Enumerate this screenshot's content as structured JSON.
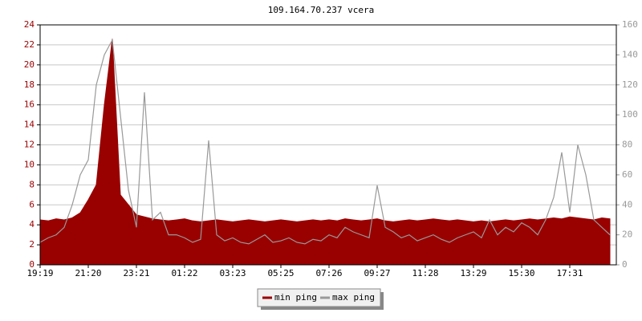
{
  "chart_data": {
    "type": "line",
    "title": "109.164.70.237 vcera",
    "categories": [
      "19:19",
      null,
      null,
      null,
      null,
      null,
      "21:20",
      null,
      null,
      null,
      null,
      null,
      "23:21",
      null,
      null,
      null,
      null,
      null,
      "01:22",
      null,
      null,
      null,
      null,
      null,
      "03:23",
      null,
      null,
      null,
      null,
      null,
      "05:25",
      null,
      null,
      null,
      null,
      null,
      "07:26",
      null,
      null,
      null,
      null,
      null,
      "09:27",
      null,
      null,
      null,
      null,
      null,
      "11:28",
      null,
      null,
      null,
      null,
      null,
      "13:29",
      null,
      null,
      null,
      null,
      null,
      "15:30",
      null,
      null,
      null,
      null,
      null,
      "17:31",
      null,
      null,
      null,
      null,
      null
    ],
    "series": [
      {
        "name": "min ping",
        "color": "#990000",
        "fill": true,
        "values": [
          4.5,
          4.4,
          4.6,
          4.5,
          4.7,
          5.2,
          6.5,
          8.0,
          16.0,
          22.6,
          7.0,
          6.0,
          5.0,
          4.8,
          4.6,
          4.5,
          4.4,
          4.5,
          4.6,
          4.4,
          4.3,
          4.4,
          4.5,
          4.4,
          4.3,
          4.4,
          4.5,
          4.4,
          4.3,
          4.4,
          4.5,
          4.4,
          4.3,
          4.4,
          4.5,
          4.4,
          4.5,
          4.4,
          4.6,
          4.5,
          4.4,
          4.5,
          4.6,
          4.4,
          4.3,
          4.4,
          4.5,
          4.4,
          4.5,
          4.6,
          4.5,
          4.4,
          4.5,
          4.4,
          4.3,
          4.4,
          4.3,
          4.4,
          4.5,
          4.4,
          4.5,
          4.6,
          4.5,
          4.6,
          4.7,
          4.6,
          4.8,
          4.7,
          4.6,
          4.5,
          4.7,
          4.6
        ]
      },
      {
        "name": "max ping",
        "color": "#999999",
        "axis": "y2",
        "values": [
          15,
          18,
          20,
          25,
          40,
          60,
          70,
          120,
          140,
          150,
          100,
          50,
          25,
          115,
          30,
          35,
          20,
          20,
          18,
          15,
          17,
          83,
          20,
          16,
          18,
          15,
          14,
          17,
          20,
          15,
          16,
          18,
          15,
          14,
          17,
          16,
          20,
          18,
          25,
          22,
          20,
          18,
          53,
          25,
          22,
          18,
          20,
          16,
          18,
          20,
          17,
          15,
          18,
          20,
          22,
          18,
          30,
          20,
          25,
          22,
          28,
          25,
          20,
          30,
          45,
          75,
          35,
          80,
          60,
          30,
          25,
          20
        ]
      }
    ],
    "ylim": [
      0,
      24
    ],
    "yticks": [
      0,
      2,
      4,
      6,
      8,
      10,
      12,
      14,
      16,
      18,
      20,
      22,
      24
    ],
    "y2lim": [
      0,
      160
    ],
    "y2ticks": [
      0,
      20,
      40,
      60,
      80,
      100,
      120,
      140,
      160
    ],
    "grid": true
  }
}
